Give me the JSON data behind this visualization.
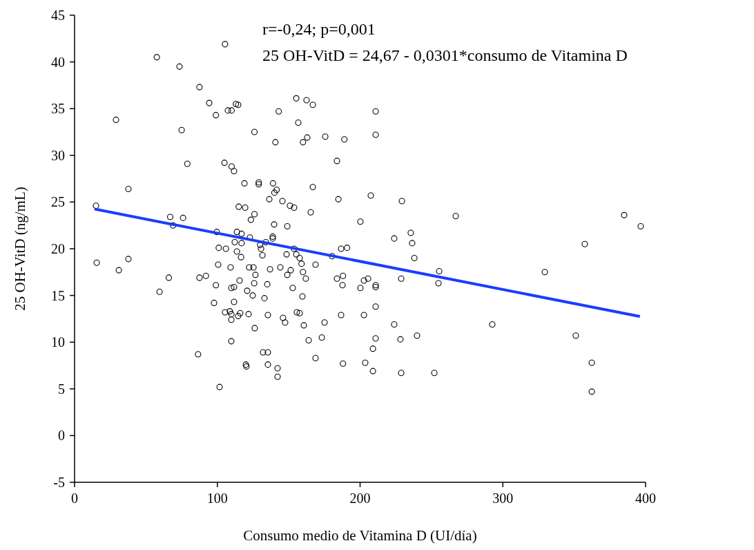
{
  "chart_data": {
    "type": "scatter",
    "xlabel": "Consumo medio de Vitamina D (UI/día)",
    "ylabel": "25 OH-VitD (ng/mL)",
    "annotations": [
      "r=-0,24; p=0,001",
      "25 OH-VitD = 24,67 - 0,0301*consumo de Vitamina D"
    ],
    "xlim": [
      0,
      400
    ],
    "xticks": [
      0,
      100,
      200,
      300,
      400
    ],
    "ylim": [
      -5,
      45
    ],
    "yticks": [
      -5,
      0,
      5,
      10,
      15,
      20,
      25,
      30,
      35,
      40,
      45
    ],
    "grid": false,
    "series": [
      {
        "color": "#000000",
        "marker": "circle",
        "x": [
          57.6,
          73.5,
          87.5,
          29,
          75,
          79,
          37.7,
          15,
          67,
          76,
          69,
          15.5,
          31,
          37.7,
          66,
          59.5,
          87.5,
          92,
          86.5,
          105.4,
          94.3,
          99,
          107.4,
          110,
          113,
          114.6,
          143,
          126,
          140.7,
          105,
          110,
          111.7,
          119,
          129,
          129,
          139,
          141.5,
          140,
          136.4,
          145.6,
          115,
          119.5,
          126,
          123.5,
          139.8,
          99.6,
          113.7,
          117,
          138.8,
          138.8,
          122.8,
          112.2,
          117,
          130,
          134,
          130.6,
          131.6,
          101,
          106,
          113.7,
          116.6,
          100.6,
          109.3,
          122.3,
          125.3,
          136.9,
          144.1,
          99,
          109.8,
          111.7,
          115.6,
          126.7,
          125.8,
          135,
          120.9,
          124.8,
          133,
          97.7,
          111.7,
          105.4,
          108.8,
          109.8,
          109.8,
          114.6,
          116,
          121.9,
          135.4,
          126.2,
          109.8,
          132,
          135.4,
          135.4,
          120,
          120.4,
          142.2,
          101.6,
          155.3,
          162.5,
          166.9,
          156.7,
          160,
          163,
          175.6,
          189,
          183.8,
          150.9,
          153.8,
          166.9,
          184.8,
          165.4,
          200.2,
          149,
          153.8,
          148.5,
          155.3,
          157.7,
          159,
          168.8,
          180.4,
          186.7,
          190.9,
          151.4,
          149,
          160,
          162,
          183.8,
          188,
          187.7,
          200.2,
          202.7,
          152.8,
          159.6,
          146,
          147.5,
          155.7,
          157.7,
          160.6,
          175.1,
          186.7,
          202.7,
          164,
          173.2,
          168.8,
          188,
          203.6,
          142.2,
          210.9,
          210.9,
          207.5,
          229.3,
          267,
          223.9,
          235.5,
          236.5,
          238,
          255.4,
          254.9,
          228.8,
          205.6,
          210.9,
          210.9,
          210.9,
          223.9,
          210.9,
          228.3,
          239.9,
          209,
          209,
          228.8,
          252,
          385,
          396.6,
          357.4,
          329.4,
          292.6,
          351.1,
          362.3,
          362.3
        ],
        "values": [
          40.5,
          39.5,
          37.3,
          33.8,
          32.7,
          29.1,
          26.4,
          24.6,
          23.4,
          23.3,
          22.5,
          18.5,
          17.7,
          18.9,
          16.9,
          15.4,
          16.9,
          17.1,
          8.7,
          41.9,
          35.6,
          34.3,
          34.8,
          34.8,
          35.5,
          35.4,
          34.7,
          32.5,
          31.4,
          29.2,
          28.8,
          28.3,
          27,
          27.1,
          26.9,
          27,
          26.3,
          26,
          25.3,
          25.1,
          24.5,
          24.4,
          23.7,
          23.1,
          22.6,
          21.8,
          21.8,
          21.6,
          21.3,
          21.1,
          21.2,
          20.7,
          20.6,
          20.4,
          20.7,
          20,
          19.3,
          20.1,
          20,
          19.7,
          19.1,
          18.3,
          18,
          18,
          18,
          17.8,
          18,
          16.1,
          15.8,
          15.9,
          16.6,
          17.2,
          16.3,
          16.2,
          15.5,
          15,
          14.7,
          14.2,
          14.3,
          13.2,
          13.3,
          13,
          12.4,
          12.8,
          13.1,
          13,
          12.9,
          11.5,
          10.1,
          8.9,
          8.9,
          7.6,
          7.6,
          7.4,
          7.2,
          5.2,
          36.1,
          35.9,
          35.4,
          33.5,
          31.4,
          31.9,
          32,
          31.7,
          29.4,
          24.6,
          24.4,
          26.6,
          25.3,
          23.9,
          22.9,
          22.4,
          20,
          19.4,
          19.4,
          19,
          18.4,
          18.3,
          19.2,
          20,
          20.1,
          17.7,
          17.2,
          17.5,
          16.8,
          16.8,
          17.1,
          16.1,
          15.8,
          16.6,
          15.8,
          14.9,
          12.6,
          12.1,
          13.2,
          13.1,
          11.8,
          12.1,
          12.9,
          12.9,
          10.2,
          10.5,
          8.3,
          7.7,
          7.8,
          6.3,
          34.7,
          32.2,
          25.7,
          25.1,
          23.5,
          21.1,
          21.7,
          20.6,
          19,
          17.6,
          16.3,
          16.8,
          16.8,
          16.1,
          15.9,
          13.8,
          11.9,
          10.4,
          10.3,
          10.7,
          9.3,
          6.9,
          6.7,
          6.7,
          23.6,
          22.4,
          20.5,
          17.5,
          11.9,
          10.7,
          7.8,
          4.7
        ]
      },
      {
        "type": "line",
        "color": "#1a3dff",
        "marker": "none",
        "line_style": "solid",
        "x": [
          14,
          396
        ],
        "values": [
          24.25,
          12.75
        ]
      }
    ]
  }
}
